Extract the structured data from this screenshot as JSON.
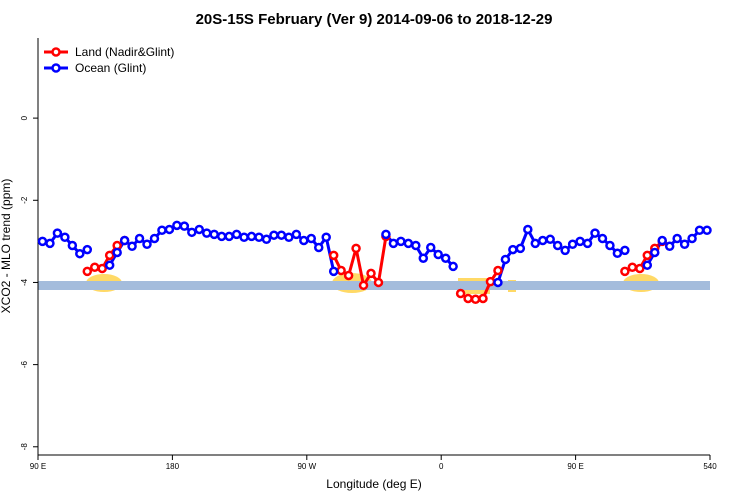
{
  "chart_data": {
    "type": "line",
    "title": "20S-15S February (Ver 9)   2014-09-06 to 2018-12-29",
    "x_label": "Longitude (deg E)",
    "y_label": "XCO2 - MLO trend (ppm)",
    "x": [
      93,
      98,
      103,
      108,
      113,
      118,
      123,
      128,
      133,
      138,
      143,
      148,
      153,
      158,
      163,
      168,
      173,
      178,
      183,
      188,
      193,
      198,
      203,
      208,
      213,
      218,
      223,
      228,
      233,
      238,
      243,
      248,
      253,
      258,
      263,
      268,
      273,
      278,
      283,
      288,
      293,
      298,
      303,
      308,
      313,
      318,
      323,
      328,
      333,
      338,
      343,
      348,
      353,
      358,
      363,
      368,
      373,
      378,
      383,
      388,
      393,
      398,
      403,
      408,
      413,
      418,
      423,
      428,
      433,
      438,
      443,
      448,
      453,
      458,
      463,
      468,
      473,
      478,
      483,
      488,
      493,
      498,
      503,
      508,
      513,
      518,
      523,
      528,
      533,
      538
    ],
    "series": [
      {
        "name": "Land (Nadir&Glint)",
        "color": "#ff0000",
        "values": [
          null,
          null,
          null,
          null,
          null,
          null,
          -3.73,
          -3.63,
          -3.66,
          -3.34,
          -3.1,
          -2.98,
          null,
          null,
          null,
          null,
          null,
          null,
          null,
          null,
          null,
          null,
          null,
          null,
          null,
          null,
          null,
          null,
          null,
          null,
          null,
          null,
          null,
          null,
          null,
          null,
          null,
          null,
          null,
          -3.34,
          -3.71,
          -3.83,
          -3.17,
          -4.07,
          -3.78,
          -4.0,
          -2.88,
          null,
          null,
          null,
          null,
          null,
          null,
          null,
          null,
          null,
          -4.27,
          -4.39,
          -4.41,
          -4.39,
          -3.98,
          -3.71,
          null,
          null,
          null,
          null,
          null,
          null,
          null,
          null,
          null,
          null,
          null,
          null,
          null,
          null,
          null,
          null,
          -3.73,
          -3.63,
          -3.66,
          -3.34,
          -3.17,
          -3.0,
          null,
          null,
          null,
          null,
          null,
          null
        ]
      },
      {
        "name": "Ocean (Glint)",
        "color": "#0000ff",
        "values": [
          -3.0,
          -3.05,
          -2.8,
          -2.9,
          -3.1,
          -3.3,
          -3.2,
          null,
          null,
          -3.58,
          -3.27,
          -2.98,
          -3.12,
          -2.93,
          -3.07,
          -2.93,
          -2.73,
          -2.71,
          -2.61,
          -2.63,
          -2.78,
          -2.71,
          -2.8,
          -2.83,
          -2.88,
          -2.88,
          -2.83,
          -2.9,
          -2.88,
          -2.9,
          -2.95,
          -2.85,
          -2.85,
          -2.9,
          -2.83,
          -2.98,
          -2.93,
          -3.15,
          -2.9,
          -3.73,
          null,
          null,
          null,
          null,
          null,
          null,
          -2.83,
          -3.05,
          -3.0,
          -3.05,
          -3.1,
          -3.41,
          -3.15,
          -3.32,
          -3.41,
          -3.61,
          null,
          null,
          null,
          null,
          null,
          -4.0,
          -3.44,
          -3.2,
          -3.17,
          -2.71,
          -3.05,
          -2.98,
          -2.95,
          -3.1,
          -3.22,
          -3.07,
          -3.0,
          -3.05,
          -2.8,
          -2.93,
          -3.1,
          -3.29,
          -3.22,
          null,
          null,
          -3.58,
          -3.27,
          -2.98,
          -3.12,
          -2.93,
          -3.07,
          -2.93,
          -2.73,
          -2.73
        ]
      }
    ],
    "xlim": [
      90,
      540
    ],
    "xticks": [
      {
        "value": 90,
        "label": "90 E"
      },
      180,
      {
        "value": 270,
        "label": "90 W"
      },
      {
        "value": 360,
        "label": "0"
      },
      {
        "value": 450,
        "label": "90 E"
      },
      540
    ],
    "ylim": [
      -8.2,
      1.95
    ],
    "yticks": [
      0,
      -2,
      -4,
      -6,
      -8
    ],
    "legend": "top-left"
  }
}
